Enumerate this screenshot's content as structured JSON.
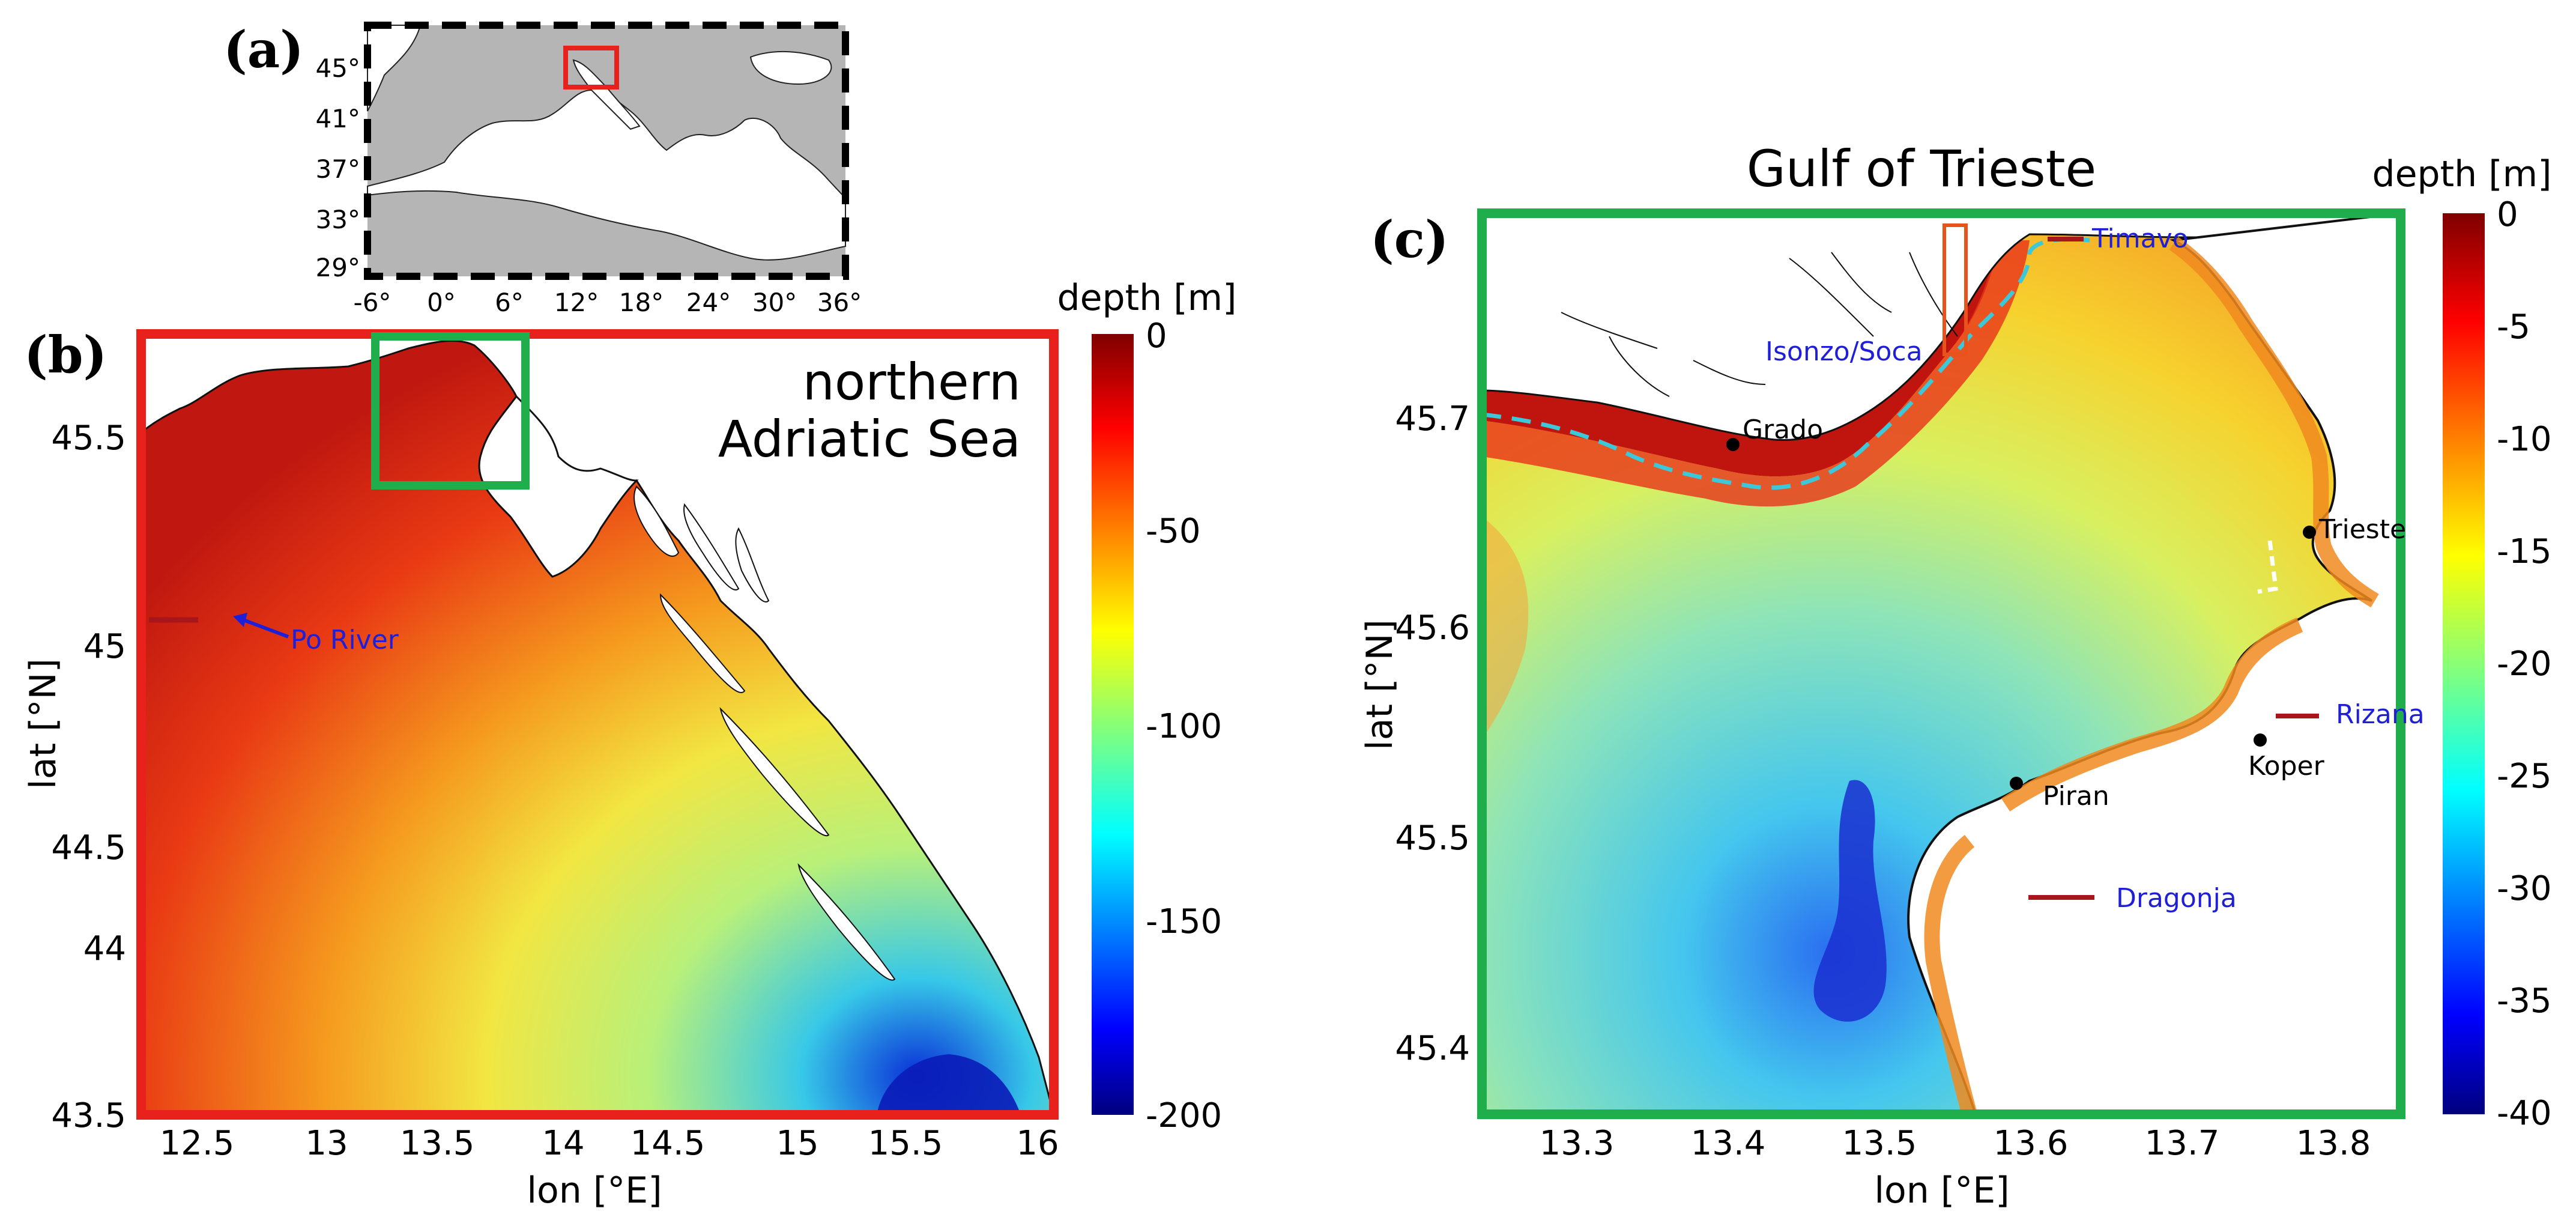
{
  "panel_a": {
    "letter": "(a)",
    "lat_ticks": [
      "45°",
      "41°",
      "37°",
      "33°",
      "29°"
    ],
    "lon_ticks": [
      "-6°",
      "0°",
      "6°",
      "12°",
      "18°",
      "24°",
      "30°",
      "36°"
    ]
  },
  "panel_b": {
    "letter": "(b)",
    "title_line1": "northern",
    "title_line2": "Adriatic Sea",
    "xlabel": "lon [°E]",
    "ylabel": "lat [°N]",
    "x_ticks": [
      "12.5",
      "13",
      "13.5",
      "14",
      "14.5",
      "15",
      "15.5",
      "16"
    ],
    "y_ticks": [
      "45.5",
      "45",
      "44.5",
      "44",
      "43.5"
    ],
    "annotation": "Po River",
    "colorbar": {
      "title": "depth [m]",
      "ticks": [
        "0",
        "-50",
        "-100",
        "-150",
        "-200"
      ],
      "min": -200,
      "max": 0
    }
  },
  "panel_c": {
    "letter": "(c)",
    "title": "Gulf of Trieste",
    "xlabel": "lon [°E]",
    "ylabel": "lat [°N]",
    "x_ticks": [
      "13.3",
      "13.4",
      "13.5",
      "13.6",
      "13.7",
      "13.8"
    ],
    "y_ticks": [
      "45.7",
      "45.6",
      "45.5",
      "45.4"
    ],
    "places": [
      "Grado",
      "Trieste",
      "Koper",
      "Piran"
    ],
    "rivers": [
      "Timavo",
      "Isonzo/Soca",
      "Rizana",
      "Dragonja"
    ],
    "colorbar": {
      "title": "depth [m]",
      "ticks": [
        "0",
        "-5",
        "-10",
        "-15",
        "-20",
        "-25",
        "-30",
        "-35",
        "-40"
      ],
      "min": -40,
      "max": 0
    }
  },
  "colors": {
    "frame_b": "#e8211c",
    "frame_c": "#1fae4b",
    "river_text": "#1f1fd8",
    "river_mark": "#a8151a",
    "isobath": "#3cc8d8"
  }
}
